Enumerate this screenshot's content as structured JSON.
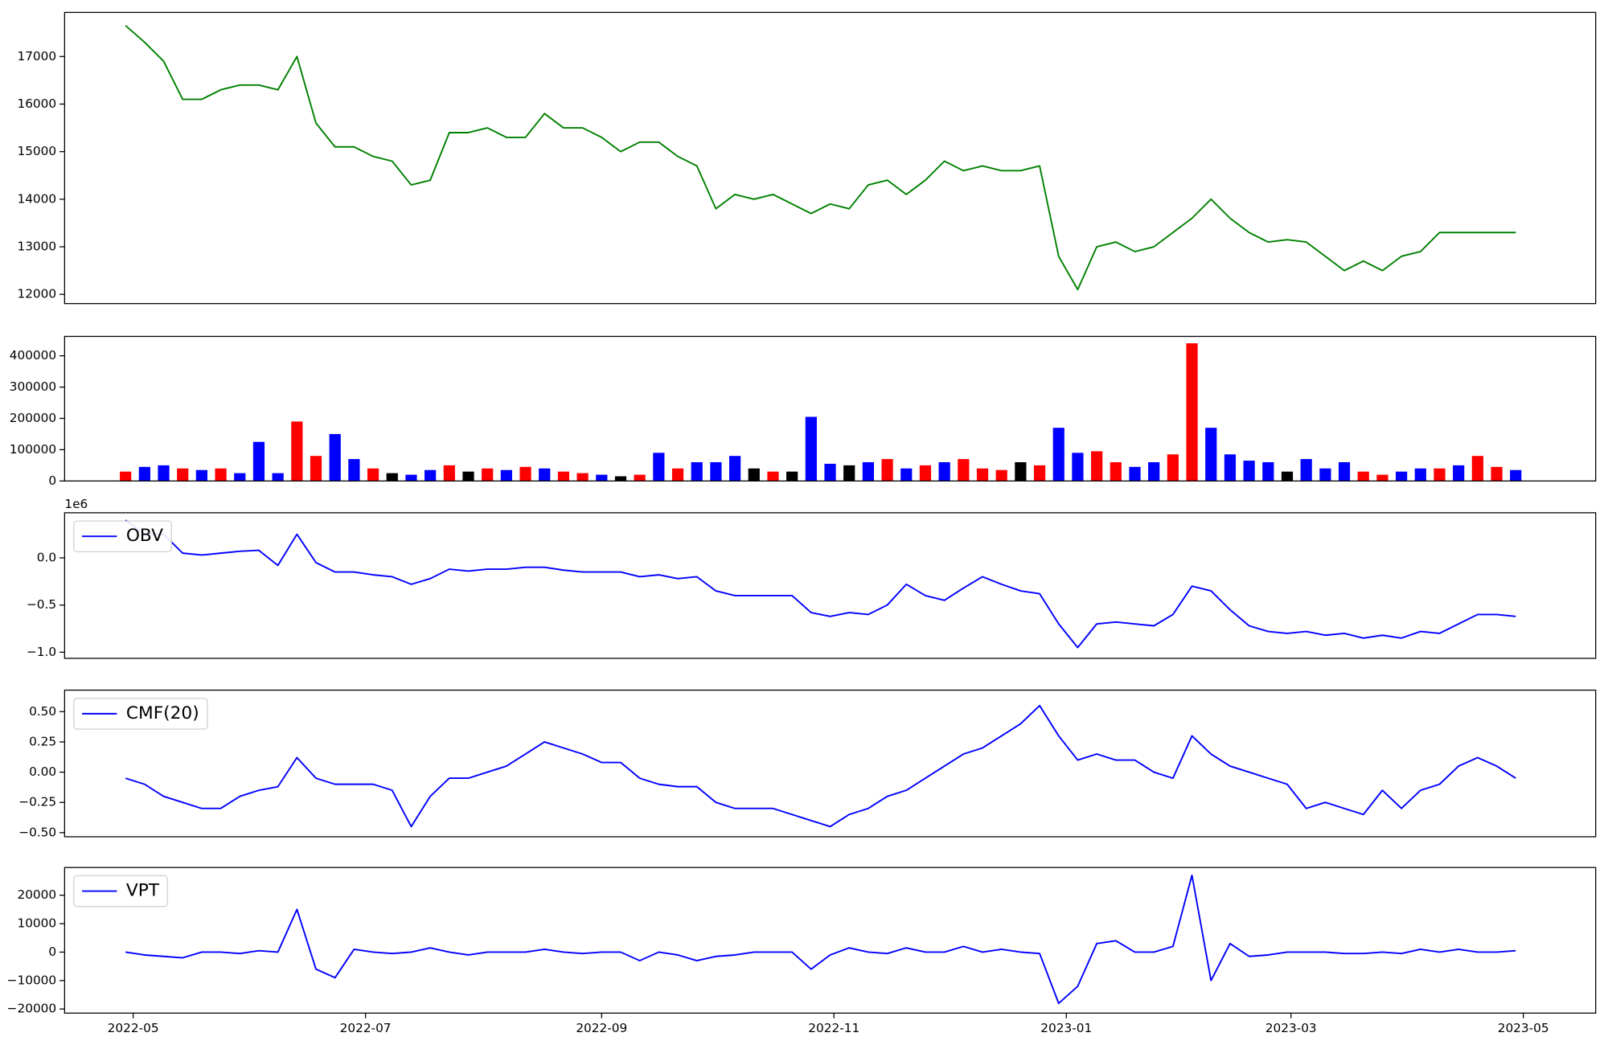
{
  "chart_data": [
    {
      "type": "line",
      "color": "#008000",
      "x": [
        19111,
        19116,
        19121,
        19126,
        19131,
        19136,
        19141,
        19146,
        19151,
        19156,
        19161,
        19166,
        19171,
        19176,
        19181,
        19186,
        19191,
        19196,
        19201,
        19206,
        19211,
        19216,
        19221,
        19226,
        19231,
        19236,
        19241,
        19246,
        19251,
        19256,
        19261,
        19266,
        19271,
        19276,
        19281,
        19286,
        19291,
        19296,
        19301,
        19306,
        19311,
        19316,
        19321,
        19326,
        19331,
        19336,
        19341,
        19346,
        19351,
        19356,
        19361,
        19366,
        19371,
        19376,
        19381,
        19386,
        19391,
        19396,
        19401,
        19406,
        19411,
        19416,
        19421,
        19426,
        19431,
        19436,
        19441,
        19446,
        19451,
        19456,
        19461,
        19466,
        19471,
        19476
      ],
      "values": [
        17650,
        17300,
        16900,
        16100,
        16100,
        16300,
        16400,
        16400,
        16300,
        17000,
        15600,
        15100,
        15100,
        14900,
        14800,
        14300,
        14400,
        15400,
        15400,
        15500,
        15300,
        15300,
        15800,
        15500,
        15500,
        15300,
        15000,
        15200,
        15200,
        14900,
        14700,
        13800,
        14100,
        14000,
        14100,
        13900,
        13700,
        13900,
        13800,
        14300,
        14400,
        14100,
        14400,
        14800,
        14600,
        14700,
        14600,
        14600,
        14700,
        12800,
        12100,
        13000,
        13100,
        12900,
        13000,
        13300,
        13600,
        14000,
        13600,
        13300,
        13100,
        13150,
        13100,
        12800,
        12500,
        12700,
        12500,
        12800,
        12900,
        13300,
        13300,
        13300,
        13300,
        13300
      ],
      "xlim": [
        19095,
        19497
      ],
      "ylim": [
        11806,
        17927
      ],
      "yticks": [
        12000,
        13000,
        14000,
        15000,
        16000,
        17000
      ]
    },
    {
      "type": "bar",
      "x": [
        19111,
        19116,
        19121,
        19126,
        19131,
        19136,
        19141,
        19146,
        19151,
        19156,
        19161,
        19166,
        19171,
        19176,
        19181,
        19186,
        19191,
        19196,
        19201,
        19206,
        19211,
        19216,
        19221,
        19226,
        19231,
        19236,
        19241,
        19246,
        19251,
        19256,
        19261,
        19266,
        19271,
        19276,
        19281,
        19286,
        19291,
        19296,
        19301,
        19306,
        19311,
        19316,
        19321,
        19326,
        19331,
        19336,
        19341,
        19346,
        19351,
        19356,
        19361,
        19366,
        19371,
        19376,
        19381,
        19386,
        19391,
        19396,
        19401,
        19406,
        19411,
        19416,
        19421,
        19426,
        19431,
        19436,
        19441,
        19446,
        19451,
        19456,
        19461,
        19466,
        19471,
        19476
      ],
      "values": [
        30000,
        45000,
        50000,
        40000,
        35000,
        40000,
        25000,
        125000,
        25000,
        190000,
        80000,
        150000,
        70000,
        40000,
        25000,
        20000,
        35000,
        50000,
        30000,
        40000,
        35000,
        45000,
        40000,
        30000,
        25000,
        20000,
        15000,
        20000,
        90000,
        40000,
        60000,
        60000,
        80000,
        40000,
        30000,
        30000,
        205000,
        55000,
        50000,
        60000,
        70000,
        40000,
        50000,
        60000,
        70000,
        40000,
        35000,
        60000,
        50000,
        170000,
        90000,
        95000,
        60000,
        45000,
        60000,
        85000,
        440000,
        170000,
        85000,
        65000,
        60000,
        30000,
        70000,
        40000,
        60000,
        30000,
        20000,
        30000,
        40000,
        40000,
        50000,
        80000,
        45000,
        35000
      ],
      "colors": [
        "#ff0000",
        "#0000ff",
        "#0000ff",
        "#ff0000",
        "#0000ff",
        "#ff0000",
        "#0000ff",
        "#0000ff",
        "#0000ff",
        "#ff0000",
        "#ff0000",
        "#0000ff",
        "#0000ff",
        "#ff0000",
        "#000000",
        "#0000ff",
        "#0000ff",
        "#ff0000",
        "#000000",
        "#ff0000",
        "#0000ff",
        "#ff0000",
        "#0000ff",
        "#ff0000",
        "#ff0000",
        "#0000ff",
        "#000000",
        "#ff0000",
        "#0000ff",
        "#ff0000",
        "#0000ff",
        "#0000ff",
        "#0000ff",
        "#000000",
        "#ff0000",
        "#000000",
        "#0000ff",
        "#0000ff",
        "#000000",
        "#0000ff",
        "#ff0000",
        "#0000ff",
        "#ff0000",
        "#0000ff",
        "#ff0000",
        "#ff0000",
        "#ff0000",
        "#000000",
        "#ff0000",
        "#0000ff",
        "#0000ff",
        "#ff0000",
        "#ff0000",
        "#0000ff",
        "#0000ff",
        "#ff0000",
        "#ff0000",
        "#0000ff",
        "#0000ff",
        "#0000ff",
        "#0000ff",
        "#000000",
        "#0000ff",
        "#0000ff",
        "#0000ff",
        "#ff0000",
        "#ff0000",
        "#0000ff",
        "#0000ff",
        "#ff0000",
        "#0000ff",
        "#ff0000",
        "#ff0000",
        "#0000ff"
      ],
      "xlim": [
        19095,
        19497
      ],
      "ylim": [
        0,
        462000
      ],
      "yticks": [
        0,
        100000,
        200000,
        300000,
        400000
      ]
    },
    {
      "type": "line",
      "legend": "upper left",
      "y_offset_label": "1e6",
      "x": [
        19111,
        19116,
        19121,
        19126,
        19131,
        19136,
        19141,
        19146,
        19151,
        19156,
        19161,
        19166,
        19171,
        19176,
        19181,
        19186,
        19191,
        19196,
        19201,
        19206,
        19211,
        19216,
        19221,
        19226,
        19231,
        19236,
        19241,
        19246,
        19251,
        19256,
        19261,
        19266,
        19271,
        19276,
        19281,
        19286,
        19291,
        19296,
        19301,
        19306,
        19311,
        19316,
        19321,
        19326,
        19331,
        19336,
        19341,
        19346,
        19351,
        19356,
        19361,
        19366,
        19371,
        19376,
        19381,
        19386,
        19391,
        19396,
        19401,
        19406,
        19411,
        19416,
        19421,
        19426,
        19431,
        19436,
        19441,
        19446,
        19451,
        19456,
        19461,
        19466,
        19471,
        19476
      ],
      "series": [
        {
          "name": "OBV",
          "color": "#0000ff",
          "values": [
            0.4,
            0.25,
            0.25,
            0.05,
            0.03,
            0.05,
            0.07,
            0.08,
            -0.08,
            0.25,
            -0.05,
            -0.15,
            -0.15,
            -0.18,
            -0.2,
            -0.28,
            -0.22,
            -0.12,
            -0.14,
            -0.12,
            -0.12,
            -0.1,
            -0.1,
            -0.13,
            -0.15,
            -0.15,
            -0.15,
            -0.2,
            -0.18,
            -0.22,
            -0.2,
            -0.35,
            -0.4,
            -0.4,
            -0.4,
            -0.4,
            -0.58,
            -0.62,
            -0.58,
            -0.6,
            -0.5,
            -0.28,
            -0.4,
            -0.45,
            -0.32,
            -0.2,
            -0.28,
            -0.35,
            -0.38,
            -0.7,
            -0.95,
            -0.7,
            -0.68,
            -0.7,
            -0.72,
            -0.6,
            -0.3,
            -0.35,
            -0.55,
            -0.72,
            -0.78,
            -0.8,
            -0.78,
            -0.82,
            -0.8,
            -0.85,
            -0.82,
            -0.85,
            -0.78,
            -0.8,
            -0.7,
            -0.6,
            -0.6,
            -0.62
          ]
        }
      ],
      "xlim": [
        19095,
        19497
      ],
      "ylim": [
        -1.065,
        0.478
      ],
      "yticks": [
        {
          "value": -1,
          "label": "−1.0"
        },
        {
          "value": -0.5,
          "label": "−0.5"
        },
        {
          "value": 0,
          "label": "0.0"
        }
      ]
    },
    {
      "type": "line",
      "legend": "upper left",
      "x": [
        19111,
        19116,
        19121,
        19126,
        19131,
        19136,
        19141,
        19146,
        19151,
        19156,
        19161,
        19166,
        19171,
        19176,
        19181,
        19186,
        19191,
        19196,
        19201,
        19206,
        19211,
        19216,
        19221,
        19226,
        19231,
        19236,
        19241,
        19246,
        19251,
        19256,
        19261,
        19266,
        19271,
        19276,
        19281,
        19286,
        19291,
        19296,
        19301,
        19306,
        19311,
        19316,
        19321,
        19326,
        19331,
        19336,
        19341,
        19346,
        19351,
        19356,
        19361,
        19366,
        19371,
        19376,
        19381,
        19386,
        19391,
        19396,
        19401,
        19406,
        19411,
        19416,
        19421,
        19426,
        19431,
        19436,
        19441,
        19446,
        19451,
        19456,
        19461,
        19466,
        19471,
        19476
      ],
      "series": [
        {
          "name": "CMF(20)",
          "color": "#0000ff",
          "values": [
            -0.05,
            -0.1,
            -0.2,
            -0.25,
            -0.3,
            -0.3,
            -0.2,
            -0.15,
            -0.12,
            0.12,
            -0.05,
            -0.1,
            -0.1,
            -0.1,
            -0.15,
            -0.45,
            -0.2,
            -0.05,
            -0.05,
            0,
            0.05,
            0.15,
            0.25,
            0.2,
            0.15,
            0.08,
            0.08,
            -0.05,
            -0.1,
            -0.12,
            -0.12,
            -0.25,
            -0.3,
            -0.3,
            -0.3,
            -0.35,
            -0.4,
            -0.45,
            -0.35,
            -0.3,
            -0.2,
            -0.15,
            -0.05,
            0.05,
            0.15,
            0.2,
            0.3,
            0.4,
            0.55,
            0.3,
            0.1,
            0.15,
            0.1,
            0.1,
            0,
            -0.05,
            0.3,
            0.15,
            0.05,
            0,
            -0.05,
            -0.1,
            -0.3,
            -0.25,
            -0.3,
            -0.35,
            -0.15,
            -0.3,
            -0.15,
            -0.1,
            0.05,
            0.12,
            0.05,
            -0.05
          ]
        }
      ],
      "xlim": [
        19095,
        19497
      ],
      "ylim": [
        -0.534,
        0.678
      ],
      "yticks": [
        {
          "value": -0.5,
          "label": "−0.50"
        },
        {
          "value": -0.25,
          "label": "−0.25"
        },
        {
          "value": 0,
          "label": "0.00"
        },
        {
          "value": 0.25,
          "label": "0.25"
        },
        {
          "value": 0.5,
          "label": "0.50"
        }
      ]
    },
    {
      "type": "line",
      "legend": "upper left",
      "x": [
        19111,
        19116,
        19121,
        19126,
        19131,
        19136,
        19141,
        19146,
        19151,
        19156,
        19161,
        19166,
        19171,
        19176,
        19181,
        19186,
        19191,
        19196,
        19201,
        19206,
        19211,
        19216,
        19221,
        19226,
        19231,
        19236,
        19241,
        19246,
        19251,
        19256,
        19261,
        19266,
        19271,
        19276,
        19281,
        19286,
        19291,
        19296,
        19301,
        19306,
        19311,
        19316,
        19321,
        19326,
        19331,
        19336,
        19341,
        19346,
        19351,
        19356,
        19361,
        19366,
        19371,
        19376,
        19381,
        19386,
        19391,
        19396,
        19401,
        19406,
        19411,
        19416,
        19421,
        19426,
        19431,
        19436,
        19441,
        19446,
        19451,
        19456,
        19461,
        19466,
        19471,
        19476
      ],
      "series": [
        {
          "name": "VPT",
          "color": "#0000ff",
          "values": [
            0,
            -1000,
            -1500,
            -2000,
            0,
            0,
            -500,
            500,
            0,
            15000,
            -6000,
            -9000,
            1000,
            0,
            -500,
            0,
            1500,
            0,
            -1000,
            0,
            0,
            0,
            1000,
            0,
            -500,
            0,
            0,
            -3000,
            0,
            -1000,
            -3000,
            -1500,
            -1000,
            0,
            0,
            0,
            -6000,
            -1000,
            1500,
            0,
            -500,
            1500,
            0,
            0,
            2000,
            0,
            1000,
            0,
            -500,
            -18000,
            -12000,
            3000,
            4000,
            0,
            0,
            2000,
            27000,
            -10000,
            3000,
            -1500,
            -1000,
            0,
            0,
            0,
            -500,
            -500,
            0,
            -500,
            1000,
            0,
            1000,
            0,
            0,
            500
          ]
        }
      ],
      "xlim": [
        19095,
        19497
      ],
      "ylim": [
        -21440,
        29730
      ],
      "yticks": [
        {
          "value": -20000,
          "label": "−20000"
        },
        {
          "value": -10000,
          "label": "−10000"
        },
        0,
        10000,
        20000
      ],
      "xticks": [
        {
          "value": 19113,
          "label": "2022-05"
        },
        {
          "value": 19174,
          "label": "2022-07"
        },
        {
          "value": 19236,
          "label": "2022-09"
        },
        {
          "value": 19297,
          "label": "2022-11"
        },
        {
          "value": 19358,
          "label": "2023-01"
        },
        {
          "value": 19417,
          "label": "2023-03"
        },
        {
          "value": 19478,
          "label": "2023-05"
        }
      ]
    }
  ]
}
